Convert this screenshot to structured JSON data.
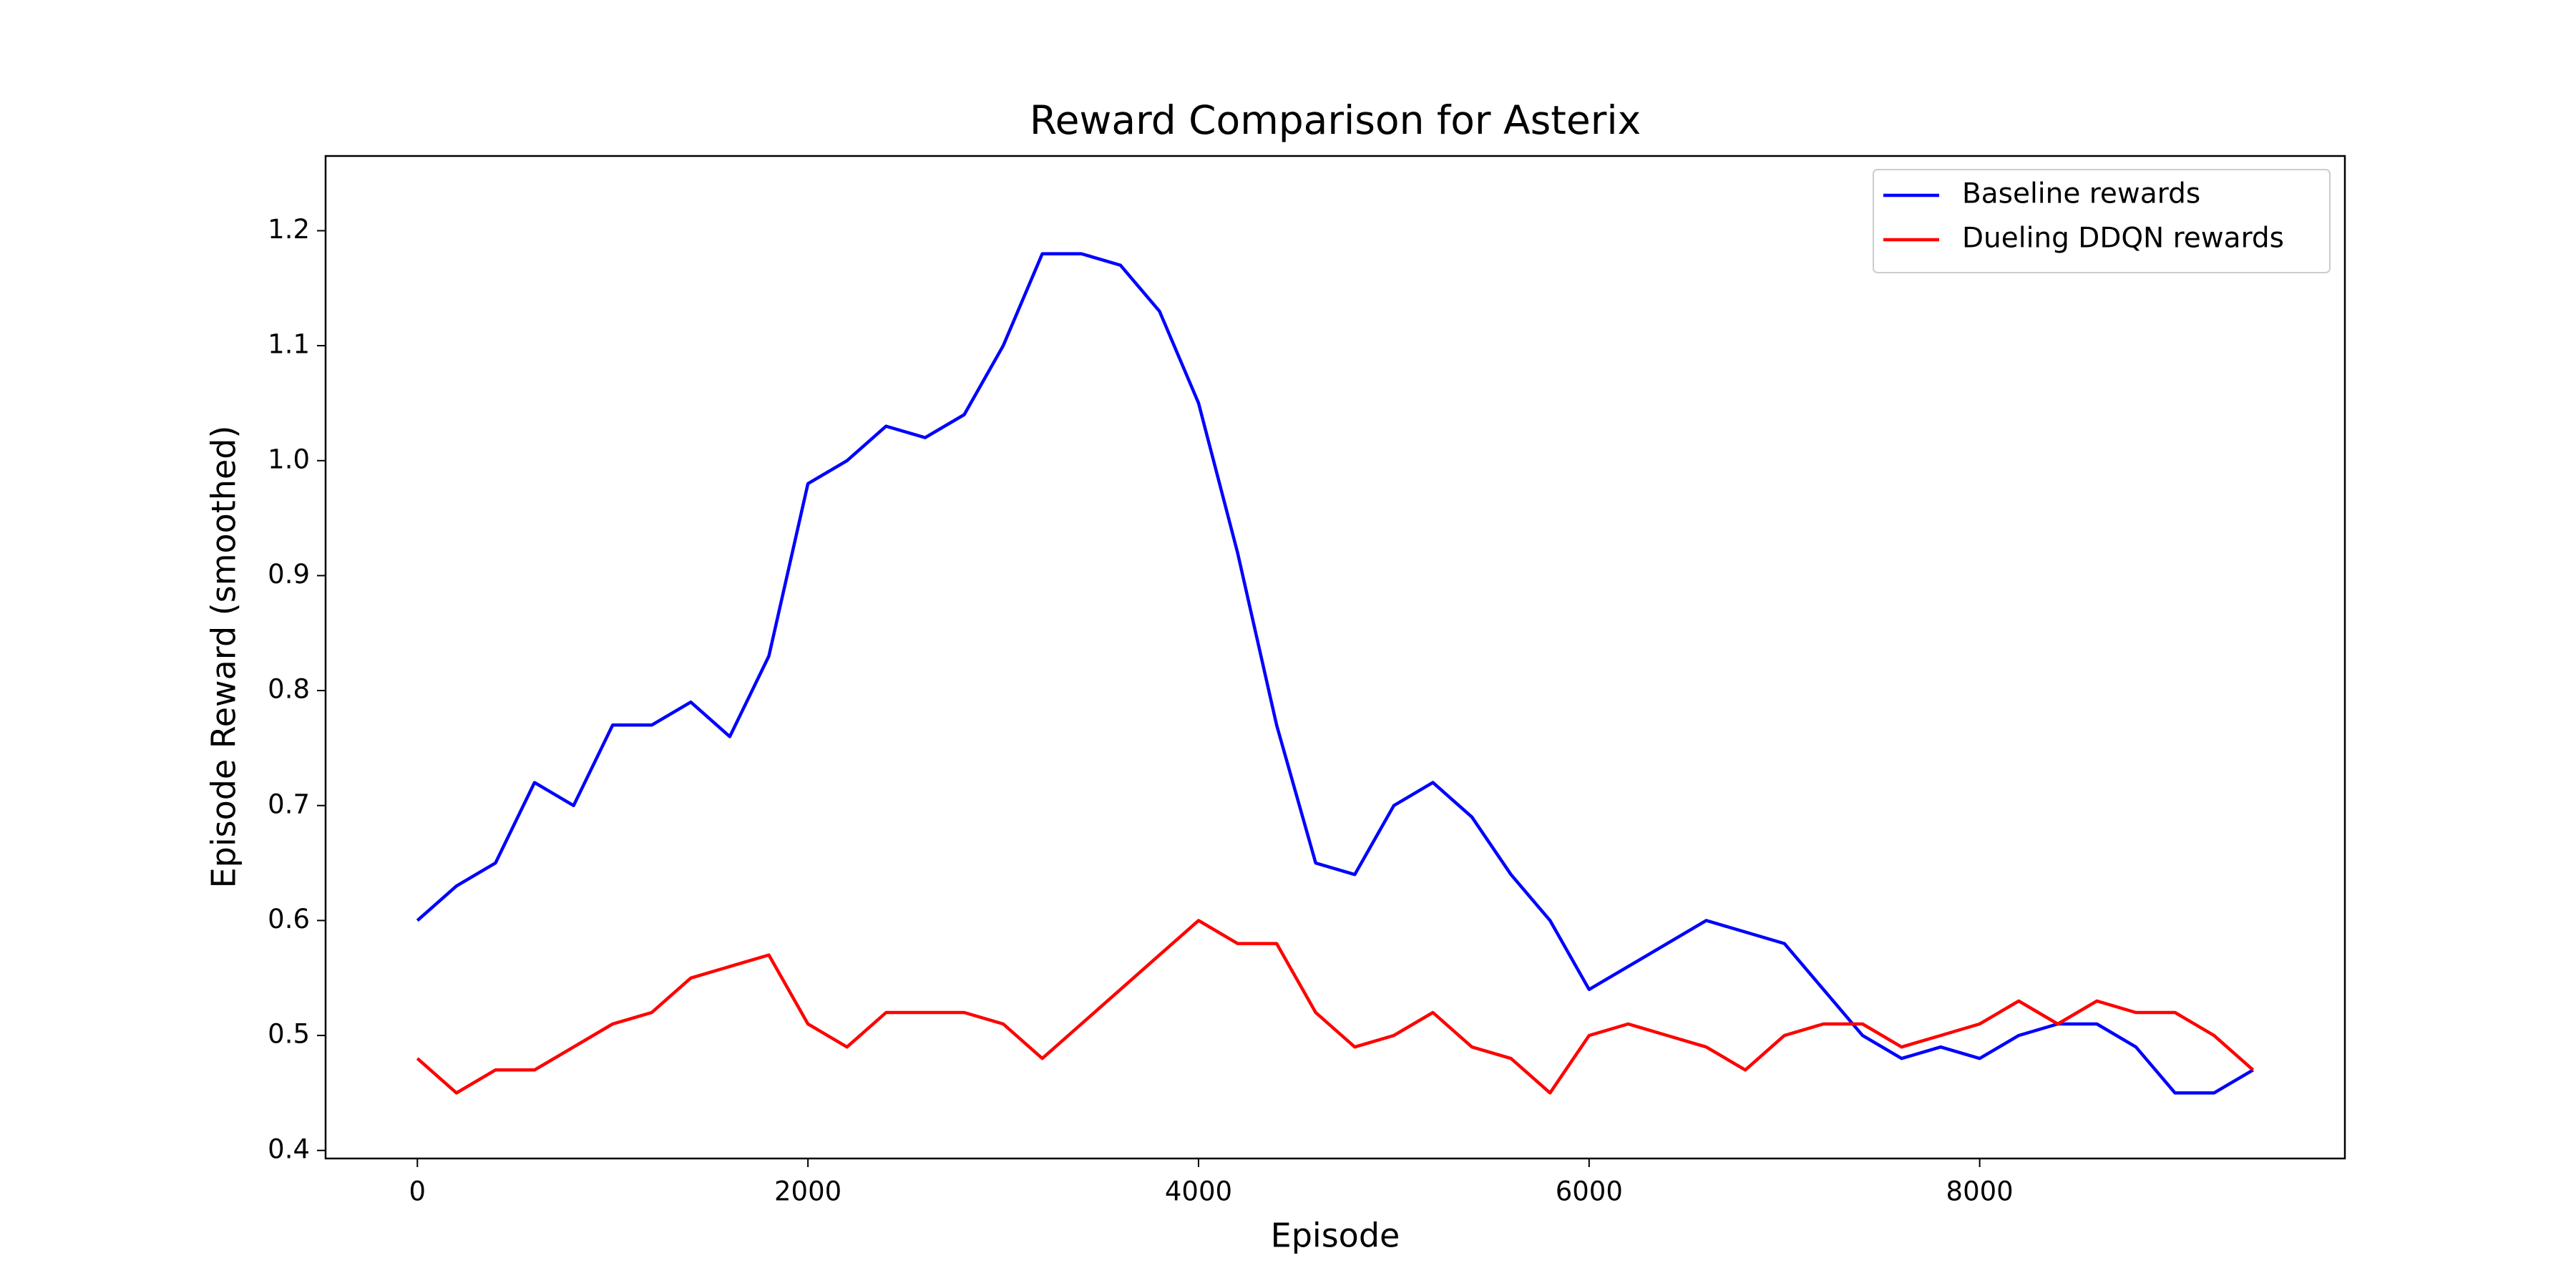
{
  "chart_data": {
    "type": "line",
    "title": "Reward Comparison for Asterix",
    "x_label": "Episode",
    "y_label": "Episode Reward (smoothed)",
    "x": [
      0,
      200,
      400,
      600,
      800,
      1000,
      1200,
      1400,
      1600,
      1800,
      2000,
      2200,
      2400,
      2600,
      2800,
      3000,
      3200,
      3400,
      3600,
      3800,
      4000,
      4200,
      4400,
      4600,
      4800,
      5000,
      5200,
      5400,
      5600,
      5800,
      6000,
      6200,
      6400,
      6600,
      6800,
      7000,
      7200,
      7400,
      7600,
      7800,
      8000,
      8200,
      8400,
      8600,
      8800,
      9000,
      9200,
      9400
    ],
    "series": [
      {
        "name": "Baseline rewards",
        "color": "#0000ff",
        "values": [
          0.6,
          0.63,
          0.65,
          0.72,
          0.7,
          0.77,
          0.77,
          0.79,
          0.76,
          0.83,
          0.98,
          1.0,
          1.03,
          1.02,
          1.04,
          1.1,
          1.18,
          1.18,
          1.17,
          1.13,
          1.05,
          0.92,
          0.77,
          0.65,
          0.64,
          0.7,
          0.72,
          0.69,
          0.64,
          0.6,
          0.54,
          0.56,
          0.58,
          0.6,
          0.59,
          0.58,
          0.54,
          0.5,
          0.48,
          0.49,
          0.48,
          0.5,
          0.51,
          0.51,
          0.49,
          0.45,
          0.45,
          0.47
        ]
      },
      {
        "name": "Dueling DDQN rewards",
        "color": "#ff0000",
        "values": [
          0.48,
          0.45,
          0.47,
          0.47,
          0.49,
          0.51,
          0.52,
          0.55,
          0.56,
          0.57,
          0.51,
          0.49,
          0.52,
          0.52,
          0.52,
          0.51,
          0.48,
          0.51,
          0.54,
          0.57,
          0.6,
          0.58,
          0.58,
          0.52,
          0.49,
          0.5,
          0.52,
          0.49,
          0.48,
          0.45,
          0.5,
          0.51,
          0.5,
          0.49,
          0.47,
          0.5,
          0.51,
          0.51,
          0.49,
          0.5,
          0.51,
          0.53,
          0.51,
          0.53,
          0.52,
          0.52,
          0.5,
          0.47
        ]
      }
    ],
    "xlim": [
      -470,
      9870
    ],
    "ylim": [
      0.393,
      1.265
    ],
    "xticks": [
      0,
      2000,
      4000,
      6000,
      8000
    ],
    "yticks": [
      0.4,
      0.5,
      0.6,
      0.7,
      0.8,
      0.9,
      {
        "value": 1,
        "label": "1.0"
      },
      1.1,
      1.2
    ],
    "grid": false,
    "legend": "upper right"
  }
}
